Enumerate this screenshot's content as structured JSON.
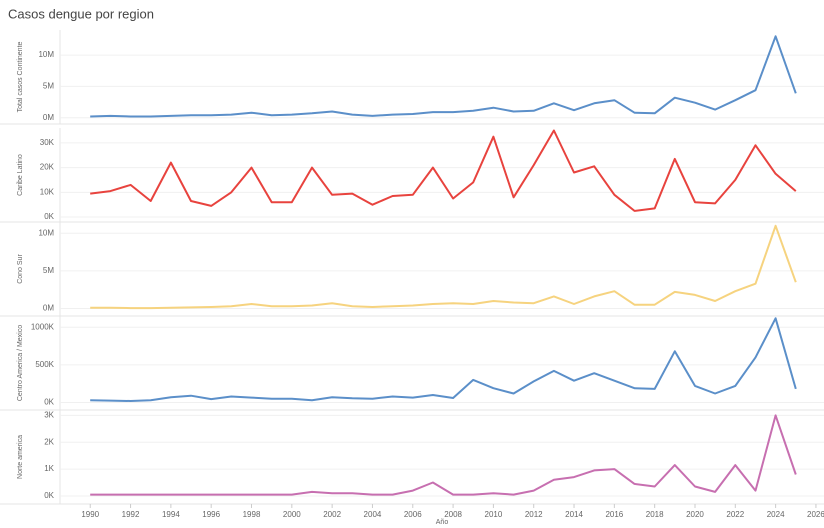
{
  "title": "Casos dengue por region",
  "x": [
    1990,
    1991,
    1992,
    1993,
    1994,
    1995,
    1996,
    1997,
    1998,
    1999,
    2000,
    2001,
    2002,
    2003,
    2004,
    2005,
    2006,
    2007,
    2008,
    2009,
    2010,
    2011,
    2012,
    2013,
    2014,
    2015,
    2016,
    2017,
    2018,
    2019,
    2020,
    2021,
    2022,
    2023,
    2024,
    2025
  ],
  "xaxis": {
    "label": "Año",
    "xlim": [
      1988.5,
      2026.4
    ],
    "xticks": [
      1990,
      1992,
      1994,
      1996,
      1998,
      2000,
      2002,
      2004,
      2006,
      2008,
      2010,
      2012,
      2014,
      2016,
      2018,
      2020,
      2022,
      2024,
      2026
    ]
  },
  "chart_data": [
    {
      "type": "line",
      "ylabel": "Total casos Continente",
      "color": "#5b8fc9",
      "ylim": [
        -1000000,
        14000000
      ],
      "yticks": [
        {
          "value": 0,
          "label": "0M"
        },
        {
          "value": 5000000,
          "label": "5M"
        },
        {
          "value": 10000000,
          "label": "10M"
        }
      ],
      "values": [
        200000,
        300000,
        200000,
        200000,
        300000,
        400000,
        400000,
        500000,
        800000,
        400000,
        500000,
        700000,
        1000000,
        500000,
        300000,
        500000,
        600000,
        900000,
        900000,
        1100000,
        1600000,
        1000000,
        1100000,
        2300000,
        1200000,
        2300000,
        2800000,
        800000,
        700000,
        3200000,
        2400000,
        1300000,
        2800000,
        4400000,
        13000000,
        3900000
      ]
    },
    {
      "type": "line",
      "ylabel": "Caribe Latino",
      "color": "#e8433e",
      "ylim": [
        -2000,
        36000
      ],
      "yticks": [
        {
          "value": 0,
          "label": "0K"
        },
        {
          "value": 10000,
          "label": "10K"
        },
        {
          "value": 20000,
          "label": "20K"
        },
        {
          "value": 30000,
          "label": "30K"
        }
      ],
      "values": [
        9500,
        10500,
        13000,
        6500,
        22000,
        6500,
        4500,
        10000,
        20000,
        6000,
        6000,
        20000,
        9000,
        9500,
        5000,
        8500,
        9000,
        20000,
        7500,
        14000,
        32500,
        8000,
        21000,
        35000,
        18000,
        20500,
        9000,
        2500,
        3500,
        23500,
        6000,
        5500,
        15000,
        29000,
        17500,
        10500
      ]
    },
    {
      "type": "line",
      "ylabel": "Cono Sur",
      "color": "#f6d37f",
      "ylim": [
        -1000000,
        11500000
      ],
      "yticks": [
        {
          "value": 0,
          "label": "0M"
        },
        {
          "value": 5000000,
          "label": "5M"
        },
        {
          "value": 10000000,
          "label": "10M"
        }
      ],
      "values": [
        100000,
        100000,
        50000,
        50000,
        100000,
        150000,
        200000,
        300000,
        600000,
        300000,
        300000,
        400000,
        700000,
        300000,
        200000,
        300000,
        400000,
        600000,
        700000,
        600000,
        1000000,
        800000,
        700000,
        1600000,
        600000,
        1600000,
        2300000,
        500000,
        500000,
        2200000,
        1800000,
        1000000,
        2300000,
        3300000,
        11000000,
        3500000
      ]
    },
    {
      "type": "line",
      "ylabel": "Centro America / Mexico",
      "color": "#5b8fc9",
      "ylim": [
        -100000,
        1150000
      ],
      "yticks": [
        {
          "value": 0,
          "label": "0K"
        },
        {
          "value": 500000,
          "label": "500K"
        },
        {
          "value": 1000000,
          "label": "1000K"
        }
      ],
      "values": [
        30000,
        25000,
        20000,
        30000,
        70000,
        90000,
        45000,
        80000,
        65000,
        50000,
        50000,
        30000,
        70000,
        55000,
        50000,
        80000,
        65000,
        100000,
        60000,
        300000,
        190000,
        120000,
        280000,
        420000,
        290000,
        390000,
        290000,
        190000,
        180000,
        680000,
        220000,
        120000,
        220000,
        600000,
        1120000,
        180000
      ]
    },
    {
      "type": "line",
      "ylabel": "Norte america",
      "color": "#c76fb0",
      "ylim": [
        -300,
        3200
      ],
      "yticks": [
        {
          "value": 0,
          "label": "0K"
        },
        {
          "value": 1000,
          "label": "1K"
        },
        {
          "value": 2000,
          "label": "2K"
        },
        {
          "value": 3000,
          "label": "3K"
        }
      ],
      "values": [
        50,
        50,
        50,
        50,
        50,
        50,
        50,
        50,
        50,
        50,
        50,
        150,
        100,
        100,
        50,
        50,
        200,
        500,
        50,
        50,
        100,
        50,
        200,
        600,
        700,
        950,
        1000,
        450,
        350,
        1150,
        350,
        150,
        1150,
        200,
        3000,
        800
      ]
    }
  ]
}
